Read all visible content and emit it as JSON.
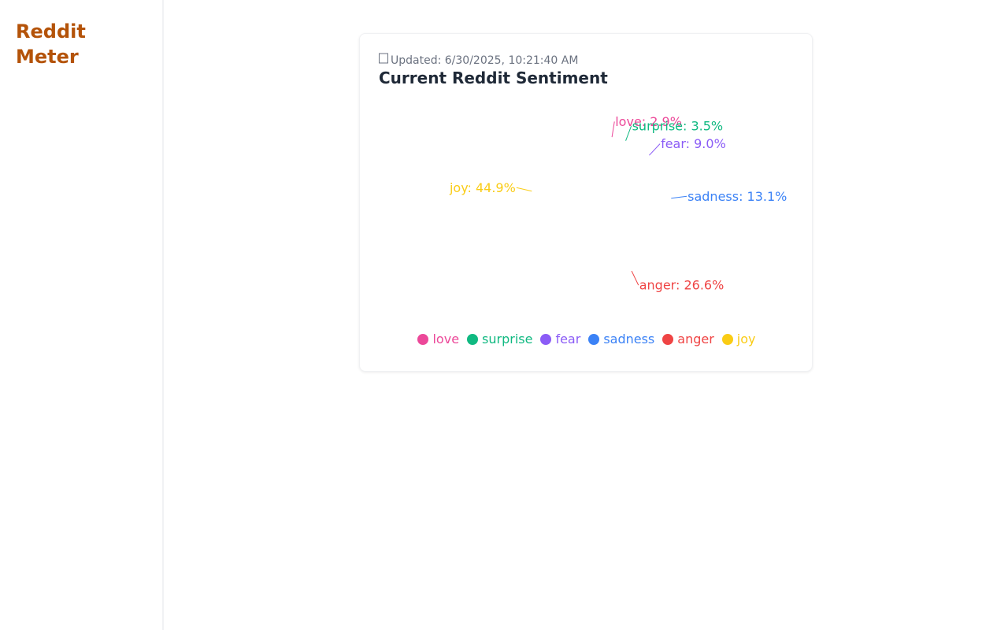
{
  "app": {
    "brand": "Reddit Meter"
  },
  "card": {
    "updated_icon": "clock-icon",
    "updated_text": "Updated: 6/30/2025, 10:21:40 AM",
    "title": "Current Reddit Sentiment"
  },
  "chart_data": {
    "type": "pie",
    "categories": [
      "love",
      "surprise",
      "fear",
      "sadness",
      "anger",
      "joy"
    ],
    "values": [
      2.9,
      3.5,
      9.0,
      13.1,
      26.6,
      44.9
    ],
    "colors": [
      "#ec4899",
      "#10b981",
      "#8b5cf6",
      "#3b82f6",
      "#ef4444",
      "#facc15"
    ],
    "unit": "%",
    "legend_position": "bottom"
  }
}
